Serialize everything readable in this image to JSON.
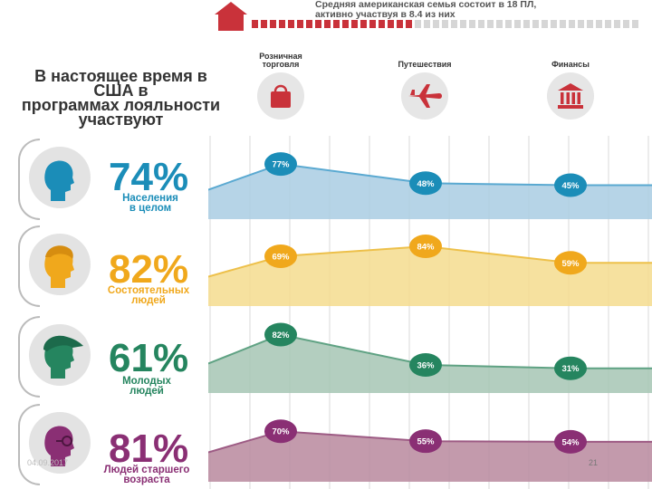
{
  "header": {
    "line1": "Средняя американская семья состоит в 18 ПЛ,",
    "line2": "активно участвуя в 8.4 из  них",
    "members": 18,
    "active": 8.4
  },
  "title": {
    "lines": [
      "В настоящее время в",
      "США в",
      "программах лояльности",
      "участвуют"
    ]
  },
  "categories": [
    {
      "label_lines": [
        "Розничная",
        "торговля"
      ],
      "icon": "shopping-bag-icon"
    },
    {
      "label_lines": [
        "Путешествия"
      ],
      "icon": "airplane-icon"
    },
    {
      "label_lines": [
        "Финансы"
      ],
      "icon": "bank-icon"
    }
  ],
  "colors": {
    "header_red": "#c9323a",
    "blue": "#1b8db8",
    "blue_fill": "#a9cde3",
    "blue_line": "#5aa9d1",
    "yellow": "#f0a81c",
    "yellow_fill": "#f5dc8e",
    "yellow_line": "#edc04a",
    "green": "#25855f",
    "green_fill": "#a6c6b4",
    "green_line": "#5fa283",
    "purple": "#8a2f74",
    "purple_fill": "#b9889e",
    "purple_line": "#9d5b84"
  },
  "groups": [
    {
      "total": "74%",
      "label_lines": [
        "Населения",
        "в целом"
      ],
      "avatar_icon": "person-icon",
      "color": "#1b8db8"
    },
    {
      "total": "82%",
      "label_lines": [
        "Состоятельных",
        "людей"
      ],
      "avatar_icon": "person-icon",
      "color": "#f0a81c"
    },
    {
      "total": "61%",
      "label_lines": [
        "Молодых",
        "людей"
      ],
      "avatar_icon": "person-cap-icon",
      "color": "#25855f"
    },
    {
      "total": "81%",
      "label_lines": [
        "Людей старшего",
        "возраста"
      ],
      "avatar_icon": "person-glasses-icon",
      "color": "#8a2f74"
    }
  ],
  "chart_data": {
    "type": "area",
    "categories": [
      "Розничная торговля",
      "Путешествия",
      "Финансы"
    ],
    "series": [
      {
        "name": "Населения в целом",
        "values": [
          77,
          48,
          45
        ],
        "labels": [
          "77%",
          "48%",
          "45%"
        ]
      },
      {
        "name": "Состоятельных людей",
        "values": [
          69,
          84,
          59
        ],
        "labels": [
          "69%",
          "84%",
          "59%"
        ]
      },
      {
        "name": "Молодых людей",
        "values": [
          82,
          36,
          31
        ],
        "labels": [
          "82%",
          "36%",
          "31%"
        ]
      },
      {
        "name": "Людей старшего возраста",
        "values": [
          70,
          55,
          54
        ],
        "labels": [
          "70%",
          "55%",
          "54%"
        ]
      }
    ],
    "ylim": [
      0,
      100
    ],
    "grid": true
  },
  "footer": {
    "date": "04.09.2017",
    "page": "21"
  }
}
